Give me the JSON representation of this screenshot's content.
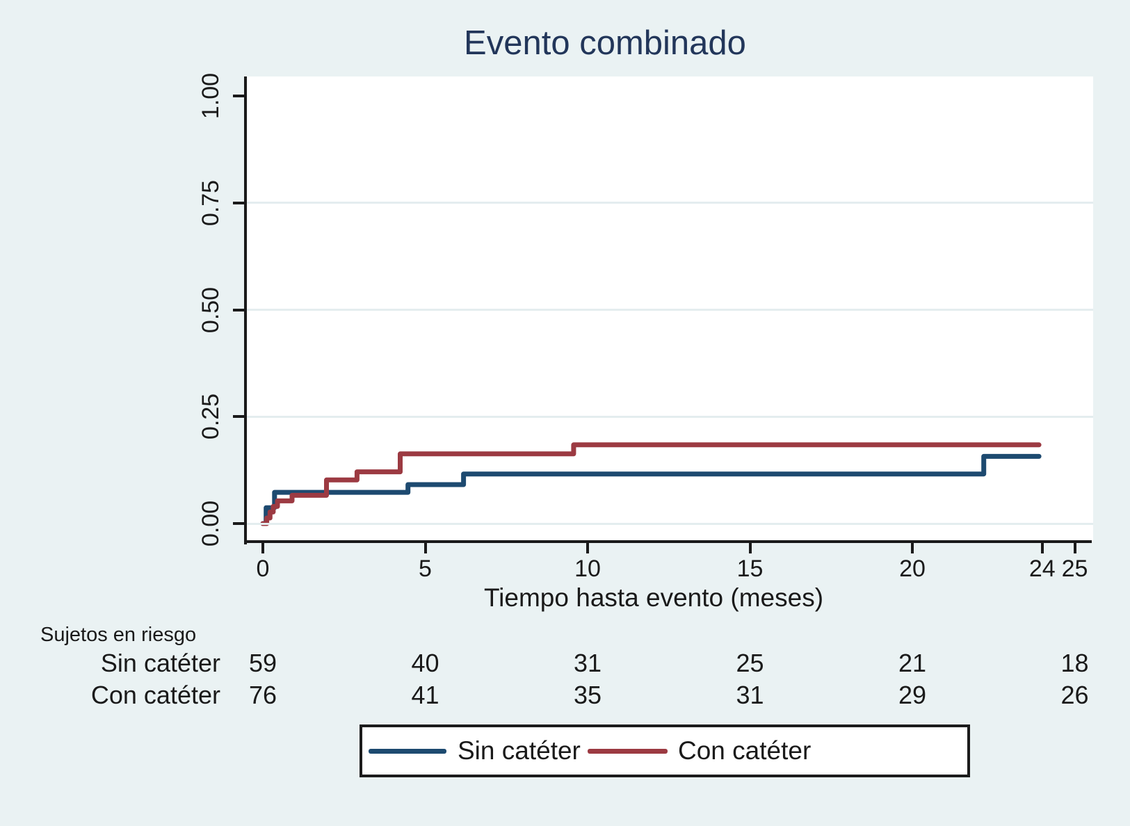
{
  "figure": {
    "title": "Evento combinado",
    "background_color": "#eaf2f3",
    "title_color": "#22365a"
  },
  "chart_data": {
    "type": "line",
    "subtype": "kaplan-meier-cumulative-incidence-steps",
    "title": "Evento combinado",
    "xlabel": "Tiempo hasta evento (meses)",
    "ylabel": "",
    "xlim": [
      0,
      25.5
    ],
    "ylim": [
      0,
      1.04
    ],
    "xticks": [
      0,
      5,
      10,
      15,
      20,
      24,
      25
    ],
    "yticks": [
      0,
      0.25,
      0.5,
      0.75,
      1
    ],
    "ytick_labels": [
      "0.00",
      "0.25",
      "0.50",
      "0.75",
      "1.00"
    ],
    "grid": {
      "horizontal_at": [
        0,
        0.25,
        0.5,
        0.75
      ],
      "color": "#e4edef"
    },
    "legend_position": "bottom",
    "series": [
      {
        "name": "Sin catéter",
        "color": "#1d4a70",
        "steps": [
          [
            0,
            0
          ],
          [
            0.1,
            0.037
          ],
          [
            0.36,
            0.073
          ],
          [
            4.47,
            0.091
          ],
          [
            6.18,
            0.116
          ],
          [
            22.2,
            0.157
          ]
        ],
        "end_x": 23.9
      },
      {
        "name": "Con catéter",
        "color": "#9c3a42",
        "steps": [
          [
            0,
            0
          ],
          [
            0.12,
            0.013
          ],
          [
            0.22,
            0.027
          ],
          [
            0.32,
            0.04
          ],
          [
            0.45,
            0.053
          ],
          [
            0.9,
            0.066
          ],
          [
            1.96,
            0.102
          ],
          [
            2.9,
            0.121
          ],
          [
            4.23,
            0.163
          ],
          [
            9.57,
            0.184
          ]
        ],
        "end_x": 23.9
      }
    ]
  },
  "risk_table": {
    "heading": "Sujetos en riesgo",
    "columns_months": [
      0,
      5,
      10,
      15,
      20,
      25
    ],
    "rows": [
      {
        "label": "Sin catéter",
        "counts": [
          "59",
          "40",
          "31",
          "25",
          "21",
          "18"
        ]
      },
      {
        "label": "Con catéter",
        "counts": [
          "76",
          "41",
          "35",
          "31",
          "29",
          "26"
        ]
      }
    ]
  },
  "legend": {
    "items": [
      {
        "label": "Sin catéter",
        "color": "#1d4a70"
      },
      {
        "label": "Con catéter",
        "color": "#9c3a42"
      }
    ]
  }
}
